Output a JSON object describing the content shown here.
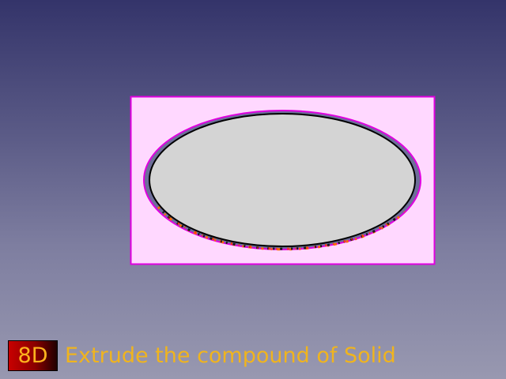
{
  "badge": {
    "label": "8D"
  },
  "caption": {
    "text": "Extrude the compound of Solid"
  },
  "colors": {
    "background_top": "#34346a",
    "background_bottom": "#9898b0",
    "selection_fill": "#ffd8ff",
    "selection_border": "#e000e0",
    "solid_fill": "#d4d4d4",
    "solid_outline": "#000000",
    "solid_side": "#6e6e9a",
    "caption_color": "#f0b41e",
    "badge_text_color": "#ffb41e"
  },
  "icons": {
    "logo": "logo-badge-icon"
  }
}
